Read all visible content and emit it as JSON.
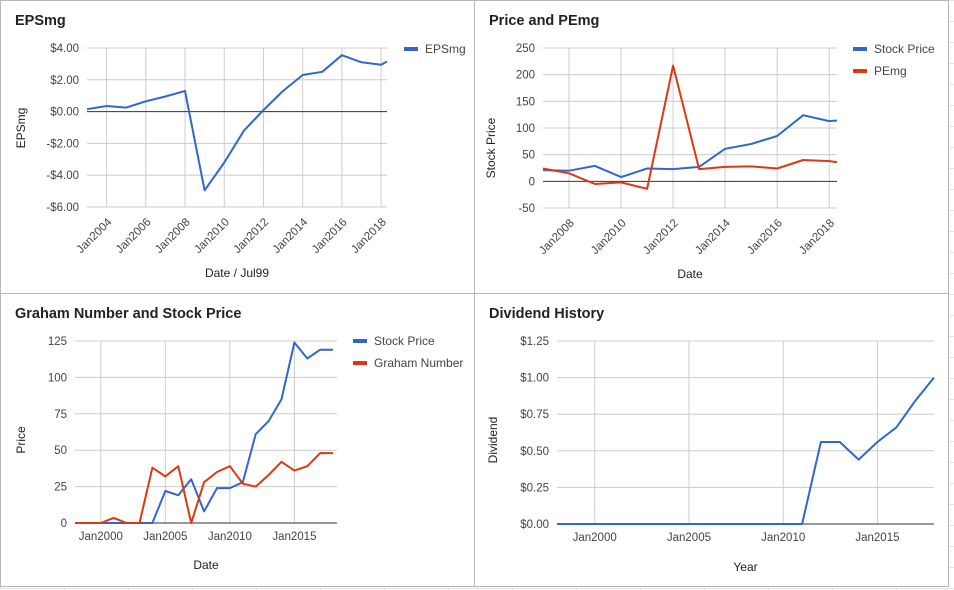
{
  "colors": {
    "blue": "#3366cc",
    "red": "#dc3912",
    "grid": "#cccccc",
    "zero": "#333333"
  },
  "chart_data": [
    {
      "type": "line",
      "title": "EPSmg",
      "xlabel": "Date / Jul99",
      "ylabel": "EPSmg",
      "xlim": [
        2003,
        2018.3
      ],
      "ylim": [
        -6,
        4
      ],
      "x_ticks": [
        2004,
        2006,
        2008,
        2010,
        2012,
        2014,
        2016,
        2018
      ],
      "x_tick_labels": [
        "Jan2004",
        "Jan2006",
        "Jan2008",
        "Jan2010",
        "Jan2012",
        "Jan2014",
        "Jan2016",
        "Jan2018"
      ],
      "y_ticks": [
        4,
        2,
        0,
        -2,
        -4,
        -6
      ],
      "y_tick_labels": [
        "$4.00",
        "$2.00",
        "$0.00",
        "-$2.00",
        "-$4.00",
        "-$6.00"
      ],
      "legend_position": "right",
      "series": [
        {
          "name": "EPSmg",
          "color": "#3366cc",
          "x": [
            2003,
            2004,
            2005,
            2006,
            2007,
            2008,
            2009,
            2010,
            2011,
            2012,
            2013,
            2014,
            2015,
            2016,
            2017,
            2018,
            2018.3
          ],
          "y": [
            0.15,
            0.35,
            0.25,
            0.65,
            0.95,
            1.3,
            -4.95,
            -3.2,
            -1.2,
            0.1,
            1.3,
            2.3,
            2.5,
            3.55,
            3.1,
            2.95,
            3.15
          ]
        }
      ]
    },
    {
      "type": "line",
      "title": "Price and PEmg",
      "xlabel": "Date",
      "ylabel": "Stock Price",
      "xlim": [
        2007,
        2018.3
      ],
      "ylim": [
        -50,
        250
      ],
      "x_ticks": [
        2008,
        2010,
        2012,
        2014,
        2016,
        2018
      ],
      "x_tick_labels": [
        "Jan2008",
        "Jan2010",
        "Jan2012",
        "Jan2014",
        "Jan2016",
        "Jan2018"
      ],
      "y_ticks": [
        250,
        200,
        150,
        100,
        50,
        0,
        -50
      ],
      "y_tick_labels": [
        "250",
        "200",
        "150",
        "100",
        "50",
        "0",
        "-50"
      ],
      "legend_position": "right",
      "series": [
        {
          "name": "Stock Price",
          "color": "#3366cc",
          "x": [
            2007,
            2008,
            2009,
            2010,
            2011,
            2012,
            2013,
            2014,
            2015,
            2016,
            2017,
            2018,
            2018.3
          ],
          "y": [
            21,
            20,
            29,
            8,
            24,
            23,
            27,
            61,
            70,
            85,
            124,
            113,
            114
          ]
        },
        {
          "name": "PEmg",
          "color": "#dc3912",
          "x": [
            2007,
            2008,
            2009,
            2010,
            2011,
            2012,
            2013,
            2014,
            2015,
            2016,
            2017,
            2018,
            2018.3
          ],
          "y": [
            24,
            15,
            -5,
            -2,
            -14,
            217,
            23,
            27,
            28,
            24,
            40,
            38,
            36
          ]
        }
      ]
    },
    {
      "type": "line",
      "title": "Graham Number and Stock Price",
      "xlabel": "Date",
      "ylabel": "Price",
      "xlim": [
        1998,
        2018.3
      ],
      "ylim": [
        0,
        125
      ],
      "x_ticks": [
        2000,
        2005,
        2010,
        2015
      ],
      "x_tick_labels": [
        "Jan2000",
        "Jan2005",
        "Jan2010",
        "Jan2015"
      ],
      "y_ticks": [
        125,
        100,
        75,
        50,
        25,
        0
      ],
      "y_tick_labels": [
        "125",
        "100",
        "75",
        "50",
        "25",
        "0"
      ],
      "legend_position": "right",
      "series": [
        {
          "name": "Stock Price",
          "color": "#3366cc",
          "x": [
            1998,
            1999,
            2000,
            2001,
            2002,
            2003,
            2004,
            2005,
            2006,
            2007,
            2008,
            2009,
            2010,
            2011,
            2012,
            2013,
            2014,
            2015,
            2016,
            2017,
            2018
          ],
          "y": [
            0,
            0,
            0,
            0,
            0,
            0,
            0,
            22,
            19,
            30,
            8,
            24,
            24,
            28,
            61,
            70,
            85,
            124,
            113,
            119,
            119
          ]
        },
        {
          "name": "Graham Number",
          "color": "#dc3912",
          "x": [
            1998,
            1999,
            2000,
            2001,
            2002,
            2003,
            2004,
            2005,
            2006,
            2007,
            2008,
            2009,
            2010,
            2011,
            2012,
            2013,
            2014,
            2015,
            2016,
            2017,
            2018
          ],
          "y": [
            0,
            0,
            0,
            3.5,
            0,
            0,
            38,
            32,
            39,
            0,
            28,
            35,
            39,
            27,
            25,
            33,
            42,
            36,
            39,
            48,
            48
          ]
        }
      ]
    },
    {
      "type": "line",
      "title": "Dividend History",
      "xlabel": "Year",
      "ylabel": "Dividend",
      "xlim": [
        1998,
        2018
      ],
      "ylim": [
        0,
        1.25
      ],
      "x_ticks": [
        2000,
        2005,
        2010,
        2015
      ],
      "x_tick_labels": [
        "Jan2000",
        "Jan2005",
        "Jan2010",
        "Jan2015"
      ],
      "y_ticks": [
        1.25,
        1.0,
        0.75,
        0.5,
        0.25,
        0
      ],
      "y_tick_labels": [
        "$1.25",
        "$1.00",
        "$0.75",
        "$0.50",
        "$0.25",
        "$0.00"
      ],
      "legend_position": "none",
      "series": [
        {
          "color": "#3366cc",
          "x": [
            1998,
            2000,
            2002,
            2004,
            2006,
            2008,
            2010,
            2011,
            2012,
            2013,
            2014,
            2015,
            2016,
            2017,
            2018
          ],
          "y": [
            0,
            0,
            0,
            0,
            0,
            0,
            0,
            0,
            0.56,
            0.56,
            0.44,
            0.56,
            0.66,
            0.84,
            1.0
          ]
        }
      ]
    }
  ]
}
